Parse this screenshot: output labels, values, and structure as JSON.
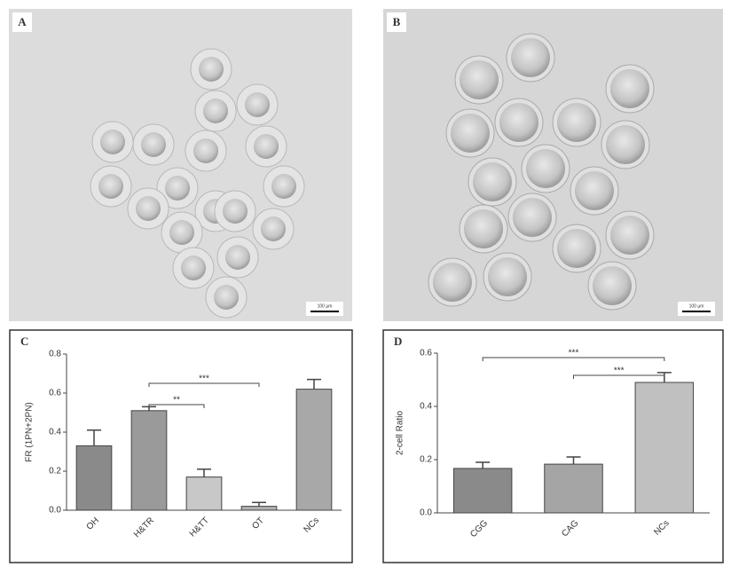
{
  "panels": [
    {
      "label": "A",
      "scale_bar": "100 µm"
    },
    {
      "label": "B",
      "scale_bar": "100 µm"
    }
  ],
  "chart_data": [
    {
      "type": "bar",
      "panel": "C",
      "ylabel": "FR (1PN+2PN)",
      "categories": [
        "OH",
        "H&TR",
        "H&TT",
        "OT",
        "NCs"
      ],
      "values": [
        0.33,
        0.51,
        0.17,
        0.02,
        0.62
      ],
      "errors": [
        0.08,
        0.02,
        0.04,
        0.02,
        0.05
      ],
      "colors": [
        "#8a8a8a",
        "#9a9a9a",
        "#c8c8c8",
        "#b0b0b0",
        "#a8a8a8"
      ],
      "ylim": [
        0,
        0.8
      ],
      "yticks": [
        {
          "value": 0,
          "label": "0.0"
        },
        0.2,
        0.4,
        0.6,
        0.8
      ],
      "annotations": [
        {
          "text": "**",
          "between": [
            "H&TR",
            "H&TT"
          ]
        },
        {
          "text": "***",
          "between": [
            "H&TR",
            "OT"
          ]
        }
      ]
    },
    {
      "type": "bar",
      "panel": "D",
      "ylabel": "2-cell Ratio",
      "categories": [
        "CGG",
        "CAG",
        "NCs"
      ],
      "values": [
        0.167,
        0.183,
        0.49
      ],
      "errors": [
        0.023,
        0.027,
        0.037
      ],
      "colors": [
        "#8a8a8a",
        "#a5a5a5",
        "#c0c0c0"
      ],
      "ylim": [
        0,
        0.6
      ],
      "yticks": [
        {
          "value": 0,
          "label": "0.0"
        },
        0.2,
        0.4,
        0.6
      ],
      "annotations": [
        {
          "text": "***",
          "between": [
            "CGG",
            "NCs"
          ]
        },
        {
          "text": "***",
          "between": [
            "CAG",
            "NCs"
          ]
        }
      ]
    }
  ]
}
